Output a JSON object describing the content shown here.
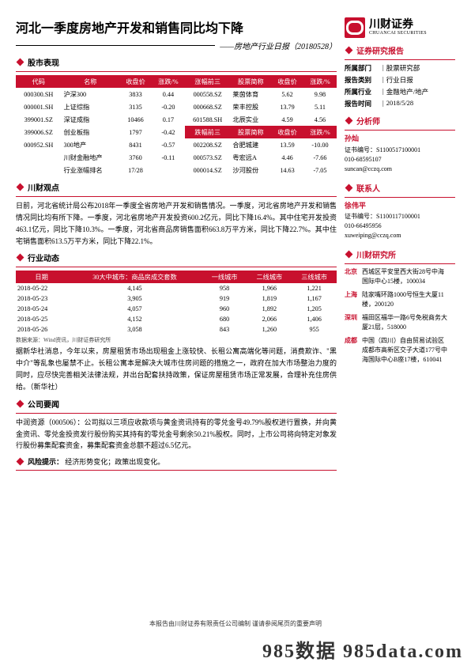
{
  "header": {
    "title": "河北一季度房地产开发和销售同比均下降",
    "subtitle": "——房地产行业日报（20180528）",
    "logo_cn": "川财证券",
    "logo_en": "CHUANCAI SECURITIES"
  },
  "market": {
    "section": "股市表现",
    "headers_left": [
      "代码",
      "名称",
      "收盘价",
      "涨跌/%"
    ],
    "headers_right_top": "涨幅前三",
    "headers_right_bot": "跌幅前三",
    "headers_right_cols": [
      "股票简称",
      "收盘价",
      "涨跌/%"
    ],
    "rows": [
      {
        "l": [
          "000300.SH",
          "沪深300",
          "3833",
          "0.44"
        ],
        "r": [
          "000558.SZ",
          "莱茵体育",
          "5.62",
          "9.98"
        ]
      },
      {
        "l": [
          "000001.SH",
          "上证综指",
          "3135",
          "-0.20"
        ],
        "r": [
          "000668.SZ",
          "荣丰控股",
          "13.79",
          "5.11"
        ]
      },
      {
        "l": [
          "399001.SZ",
          "深证成指",
          "10466",
          "0.17"
        ],
        "r": [
          "601588.SH",
          "北辰实业",
          "4.59",
          "4.56"
        ]
      },
      {
        "l": [
          "399006.SZ",
          "创业板指",
          "1797",
          "-0.42"
        ],
        "r": [
          "",
          "",
          "",
          ""
        ]
      },
      {
        "l": [
          "000952.SH",
          "300地产",
          "8431",
          "-0.57"
        ],
        "r": [
          "002208.SZ",
          "合肥城建",
          "13.59",
          "-10.00"
        ]
      },
      {
        "l": [
          "",
          "川财金融地产",
          "3760",
          "-0.11"
        ],
        "r": [
          "000573.SZ",
          "粤宏远A",
          "4.46",
          "-7.66"
        ]
      },
      {
        "l": [
          "",
          "行业涨幅排名",
          "17/28",
          ""
        ],
        "r": [
          "000014.SZ",
          "沙河股份",
          "14.63",
          "-7.05"
        ]
      }
    ]
  },
  "viewpoint": {
    "section": "川财观点",
    "text": "日前，河北省统计局公布2018年一季度全省房地产开发和销售情况。一季度，河北省房地产开发和销售情况同比均有所下降。一季度，河北省房地产开发投资600.2亿元，同比下降16.4%。其中住宅开发投资463.1亿元，同比下降10.3%。一季度，河北省商品房销售面积663.8万平方米，同比下降22.7%。其中住宅销售面积613.5万平方米，同比下降22.1%。"
  },
  "dynamics": {
    "section": "行业动态",
    "headers": [
      "日期",
      "30大中城市：商品房成交套数",
      "一线城市",
      "二线城市",
      "三线城市"
    ],
    "rows": [
      [
        "2018-05-22",
        "4,145",
        "958",
        "1,966",
        "1,221"
      ],
      [
        "2018-05-23",
        "3,905",
        "919",
        "1,819",
        "1,167"
      ],
      [
        "2018-05-24",
        "4,057",
        "960",
        "1,892",
        "1,205"
      ],
      [
        "2018-05-25",
        "4,152",
        "680",
        "2,066",
        "1,406"
      ],
      [
        "2018-05-26",
        "3,058",
        "843",
        "1,260",
        "955"
      ]
    ],
    "source": "数据来源：Wind资讯，川财证券研究所",
    "text": "据新华社消息，今年以来，房屋租赁市场出现租金上涨较快、长租公寓高端化等问题，消费欺诈、\"黑中介\"等乱象也屡禁不止。长租公寓本是解决大城市住房问题的措施之一，政府在加大市场整治力度的同时，应尽快完善相关法律法规，并出台配套扶持政策，保证房屋租赁市场正常发展，合理补充住房供给。（新华社）"
  },
  "company": {
    "section": "公司要闻",
    "text": "中润资源（000506）：公司拟以三项应收款项与黄金资讯持有的零兑金号49.79%股权进行置换，并向黄金资讯、零兑金投资发行股份购买其持有的零兑金号剩余50.21%股权。同时，上市公司将向特定对象发行股份募集配套资金，募集配套资金总额不超过6.5亿元。"
  },
  "risk": {
    "section": "风险提示：",
    "text": "经济形势变化；政策出现变化。"
  },
  "side": {
    "research_title": "证券研究报告",
    "meta": [
      {
        "label": "所属部门",
        "val": "股票研究部"
      },
      {
        "label": "报告类别",
        "val": "行业日报"
      },
      {
        "label": "所属行业",
        "val": "金融地产/地产"
      },
      {
        "label": "报告时间",
        "val": "2018/5/28"
      }
    ],
    "analyst_title": "分析师",
    "analyst": {
      "name": "孙灿",
      "cert": "证书编号：S1100517100001",
      "tel": "010-68595107",
      "mail": "suncan@cczq.com"
    },
    "contact_title": "联系人",
    "contact": {
      "name": "徐伟平",
      "cert": "证书编号：S1100117100001",
      "tel": "010-66495956",
      "mail": "xuweiping@cczq.com"
    },
    "inst_title": "川财研究所",
    "addresses": [
      {
        "city": "北京",
        "addr": "西城区平安里西大街28号中海国际中心15楼，100034"
      },
      {
        "city": "上海",
        "addr": "陆家嘴环路1000号恒生大厦11楼，200120"
      },
      {
        "city": "深圳",
        "addr": "福田区福华一路6号免税商务大厦21层，518000"
      },
      {
        "city": "成都",
        "addr": "中国（四川）自由贸易试验区成都市高新区交子大道177号中海国际中心B座17楼，610041"
      }
    ]
  },
  "footer": "本报告由川财证券有限责任公司编制  谨请参阅尾页的重要声明",
  "watermark": "985数据  985data.com"
}
